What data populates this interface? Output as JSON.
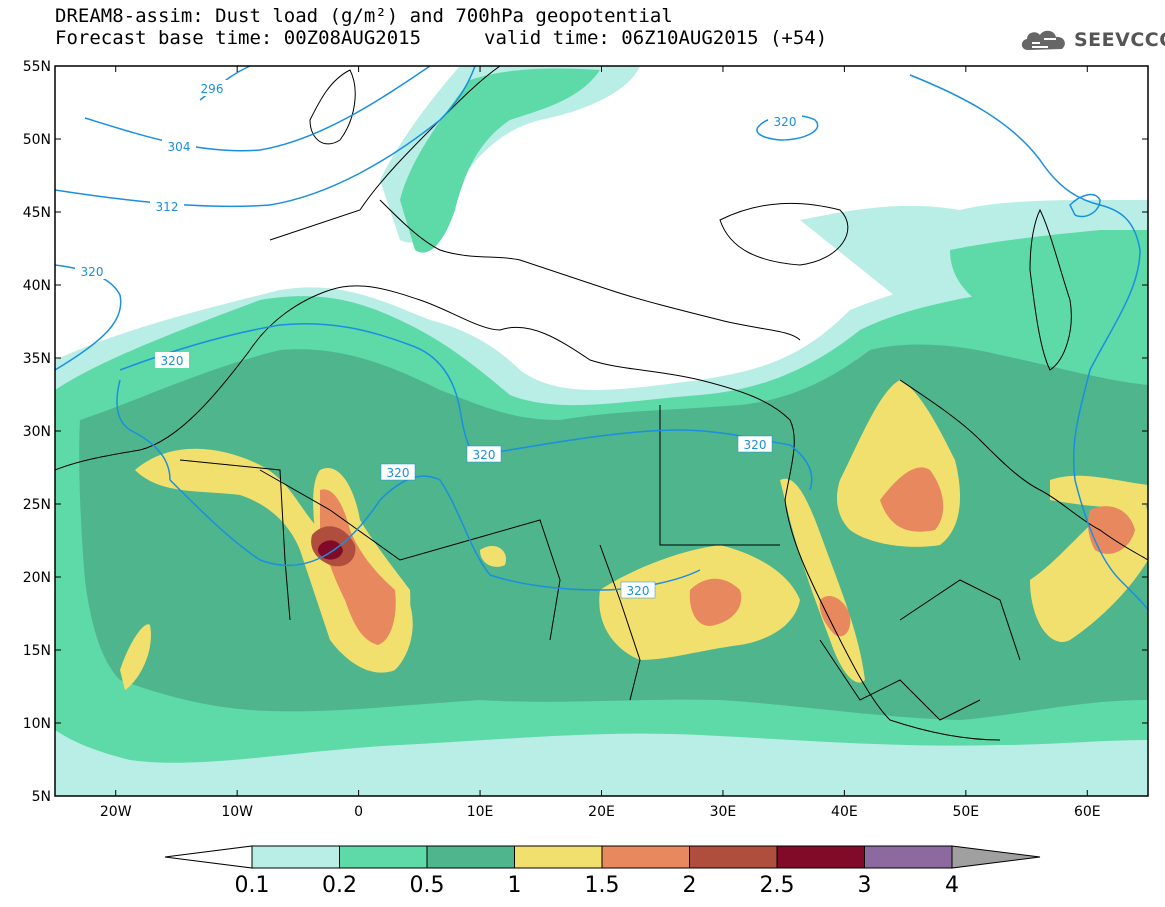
{
  "header": {
    "title_line1": "DREAM8-assim: Dust load (g/m²) and 700hPa geopotential",
    "title_line2": "Forecast base time: 00Z08AUG2015",
    "valid_time": "valid time: 06Z10AUG2015 (+54)",
    "logo_text": "SEEVCCC"
  },
  "map": {
    "extent": {
      "lon_min": -25,
      "lon_max": 65,
      "lat_min": 5,
      "lat_max": 55
    },
    "lat_ticks": [
      {
        "value": 55,
        "label": "55N"
      },
      {
        "value": 50,
        "label": "50N"
      },
      {
        "value": 45,
        "label": "45N"
      },
      {
        "value": 40,
        "label": "40N"
      },
      {
        "value": 35,
        "label": "35N"
      },
      {
        "value": 30,
        "label": "30N"
      },
      {
        "value": 25,
        "label": "25N"
      },
      {
        "value": 20,
        "label": "20N"
      },
      {
        "value": 15,
        "label": "15N"
      },
      {
        "value": 10,
        "label": "10N"
      },
      {
        "value": 5,
        "label": "5N"
      }
    ],
    "lon_ticks": [
      {
        "value": -20,
        "label": "20W"
      },
      {
        "value": -10,
        "label": "10W"
      },
      {
        "value": 0,
        "label": "0"
      },
      {
        "value": 10,
        "label": "10E"
      },
      {
        "value": 20,
        "label": "20E"
      },
      {
        "value": 30,
        "label": "30E"
      },
      {
        "value": 40,
        "label": "40E"
      },
      {
        "value": 50,
        "label": "50E"
      },
      {
        "value": 60,
        "label": "60E"
      }
    ],
    "contour_labels": [
      "296",
      "304",
      "312",
      "320",
      "320",
      "320",
      "320",
      "320",
      "320",
      "320"
    ],
    "contour_color": "#1a8fe0"
  },
  "colorbar": {
    "labels": [
      "0.1",
      "0.2",
      "0.5",
      "1",
      "1.5",
      "2",
      "2.5",
      "3",
      "4"
    ],
    "colors": [
      "#b8eee6",
      "#5ed9a8",
      "#4eb58c",
      "#f2e06e",
      "#e8885e",
      "#b04e3e",
      "#800a28",
      "#8c6aa0"
    ],
    "under_color": "#ffffff",
    "over_color": "#a0a0a0"
  }
}
